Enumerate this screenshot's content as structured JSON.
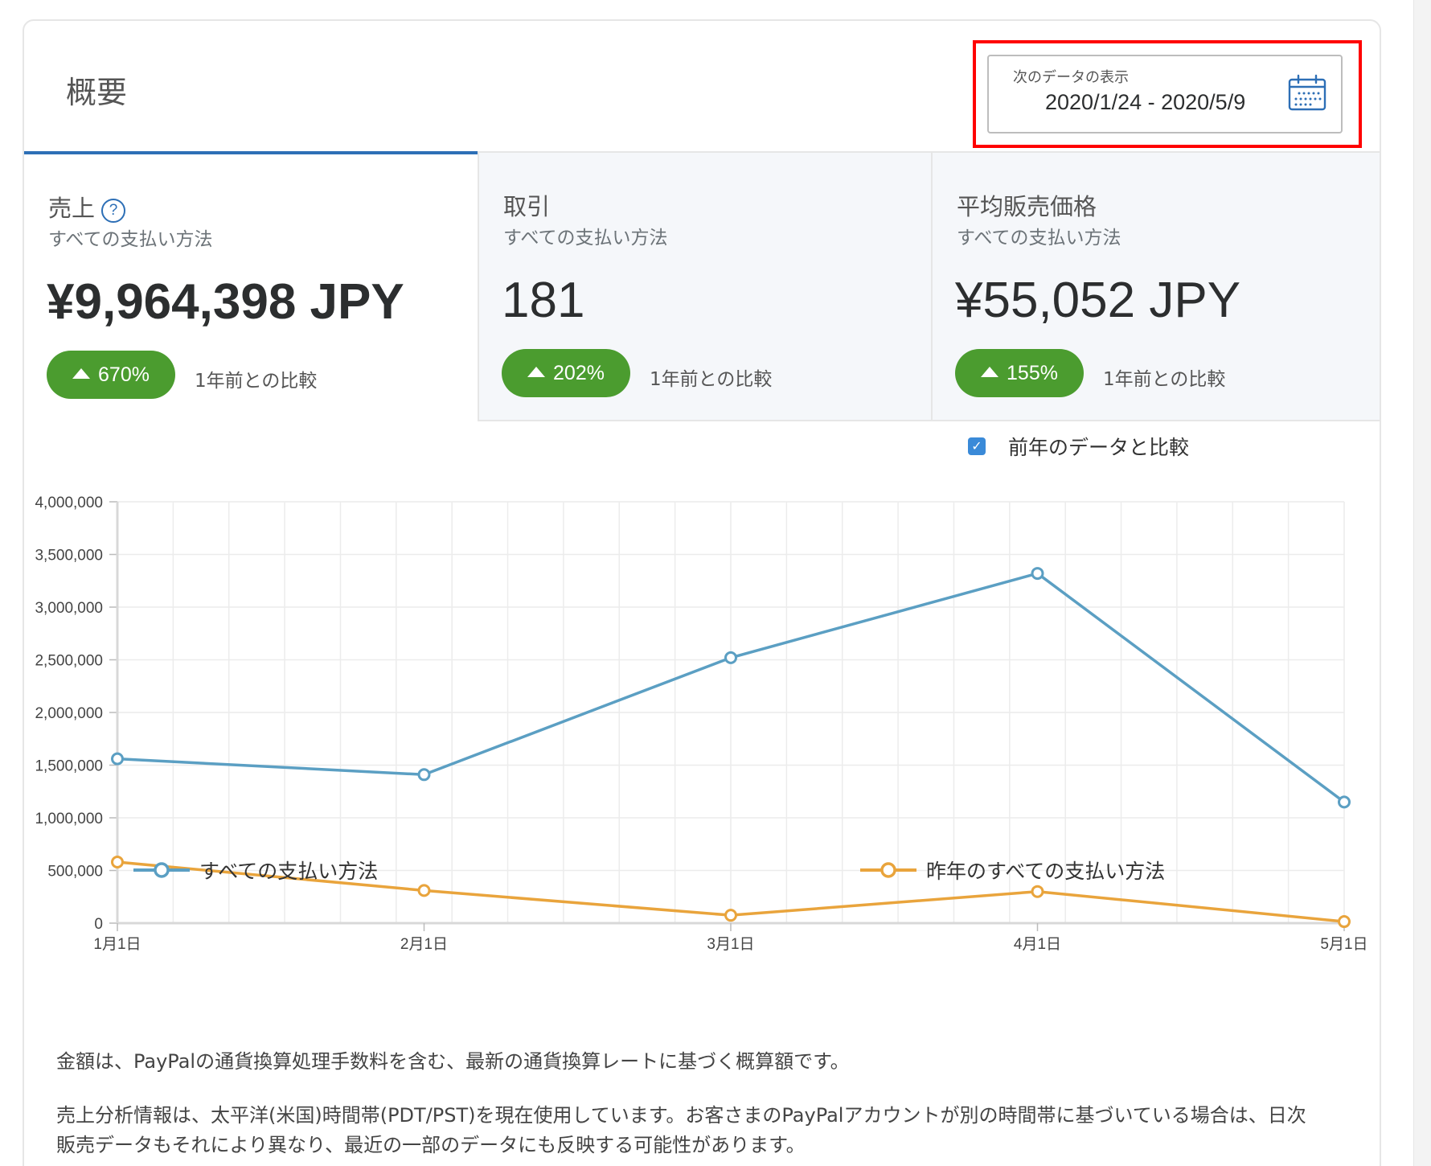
{
  "header": {
    "title": "概要",
    "date_label": "次のデータの表示",
    "date_range": "2020/1/24 - 2020/5/9"
  },
  "tabs": [
    {
      "title": "売上",
      "subtitle": "すべての支払い方法",
      "value": "¥9,964,398 JPY",
      "change": "670%",
      "compare": "1年前との比較"
    },
    {
      "title": "取引",
      "subtitle": "すべての支払い方法",
      "value": "181",
      "change": "202%",
      "compare": "1年前との比較"
    },
    {
      "title": "平均販売価格",
      "subtitle": "すべての支払い方法",
      "value": "¥55,052 JPY",
      "change": "155%",
      "compare": "1年前との比較"
    }
  ],
  "help_glyph": "?",
  "compare_toggle": {
    "label": "前年のデータと比較",
    "checked": true
  },
  "chart_data": {
    "type": "line",
    "categories": [
      "1月1日",
      "2月1日",
      "3月1日",
      "4月1日",
      "5月1日"
    ],
    "ylim": [
      0,
      4000000
    ],
    "yticks": [
      "0",
      "500,000",
      "1,000,000",
      "1,500,000",
      "2,000,000",
      "2,500,000",
      "3,000,000",
      "3,500,000",
      "4,000,000"
    ],
    "grid": true,
    "legend_position": "bottom",
    "series": [
      {
        "name": "すべての支払い方法",
        "color": "#5b9fc3",
        "values": [
          1560000,
          1410000,
          2520000,
          3320000,
          1150000
        ]
      },
      {
        "name": "昨年のすべての支払い方法",
        "color": "#e9a43c",
        "values": [
          580000,
          310000,
          75000,
          300000,
          15000
        ]
      }
    ]
  },
  "notes": [
    "金額は、PayPalの通貨換算処理手数料を含む、最新の通貨換算レートに基づく概算額です。",
    "売上分析情報は、太平洋(米国)時間帯(PDT/PST)を現在使用しています。お客さまのPayPalアカウントが別の時間帯に基づいている場合は、日次販売データもそれにより異なり、最近の一部のデータにも反映する可能性があります。"
  ],
  "colors": {
    "accent": "#2d6fb6",
    "badge": "#4b9c2f",
    "highlight": "#ff0000"
  }
}
